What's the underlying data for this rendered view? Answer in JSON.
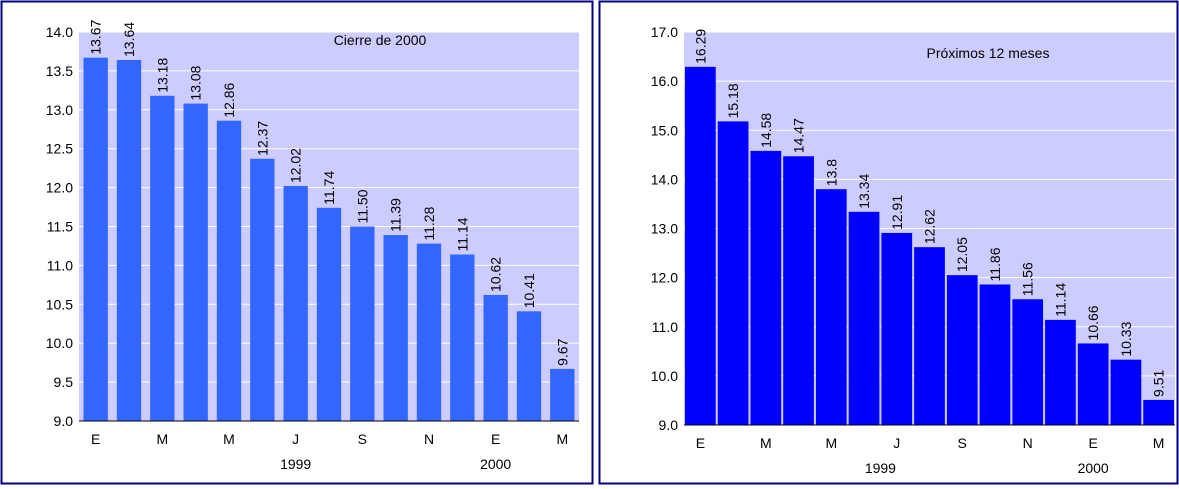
{
  "colors": {
    "plot_bg": "#ccccff",
    "frame": "#000080",
    "grid": "#ffffff"
  },
  "chart_data": [
    {
      "type": "bar",
      "title": "Cierre de 2000",
      "categories": [
        "E",
        "",
        "M",
        "",
        "M",
        "",
        "J",
        "",
        "S",
        "",
        "N",
        "",
        "E",
        "",
        "M"
      ],
      "year_labels": [
        "1999",
        "2000"
      ],
      "values": [
        13.67,
        13.64,
        13.18,
        13.08,
        12.86,
        12.37,
        12.02,
        11.74,
        11.5,
        11.39,
        11.28,
        11.14,
        10.62,
        10.41,
        9.67
      ],
      "value_labels": [
        "13.67",
        "13.64",
        "13.18",
        "13.08",
        "12.86",
        "12.37",
        "12.02",
        "11.74",
        "11.50",
        "11.39",
        "11.28",
        "11.14",
        "10.62",
        "10.41",
        "9.67"
      ],
      "ylim": [
        9.0,
        14.0
      ],
      "yticks": [
        "9.0",
        "9.5",
        "10.0",
        "10.5",
        "11.0",
        "11.5",
        "12.0",
        "12.5",
        "13.0",
        "13.5",
        "14.0"
      ],
      "grid": true,
      "bar_color": "#3366ff"
    },
    {
      "type": "bar",
      "title": "Próximos 12 meses",
      "categories": [
        "E",
        "",
        "M",
        "",
        "M",
        "",
        "J",
        "",
        "S",
        "",
        "N",
        "",
        "E",
        "",
        "M"
      ],
      "year_labels": [
        "1999",
        "2000"
      ],
      "values": [
        16.29,
        15.18,
        14.58,
        14.47,
        13.8,
        13.34,
        12.91,
        12.62,
        12.05,
        11.86,
        11.56,
        11.14,
        10.66,
        10.33,
        9.51
      ],
      "value_labels": [
        "16.29",
        "15.18",
        "14.58",
        "14.47",
        "13.8",
        "13.34",
        "12.91",
        "12.62",
        "12.05",
        "11.86",
        "11.56",
        "11.14",
        "10.66",
        "10.33",
        "9.51"
      ],
      "ylim": [
        9.0,
        17.0
      ],
      "yticks": [
        "9.0",
        "10.0",
        "11.0",
        "12.0",
        "13.0",
        "14.0",
        "15.0",
        "16.0",
        "17.0"
      ],
      "grid": true,
      "bar_color": "#0000ff"
    }
  ]
}
